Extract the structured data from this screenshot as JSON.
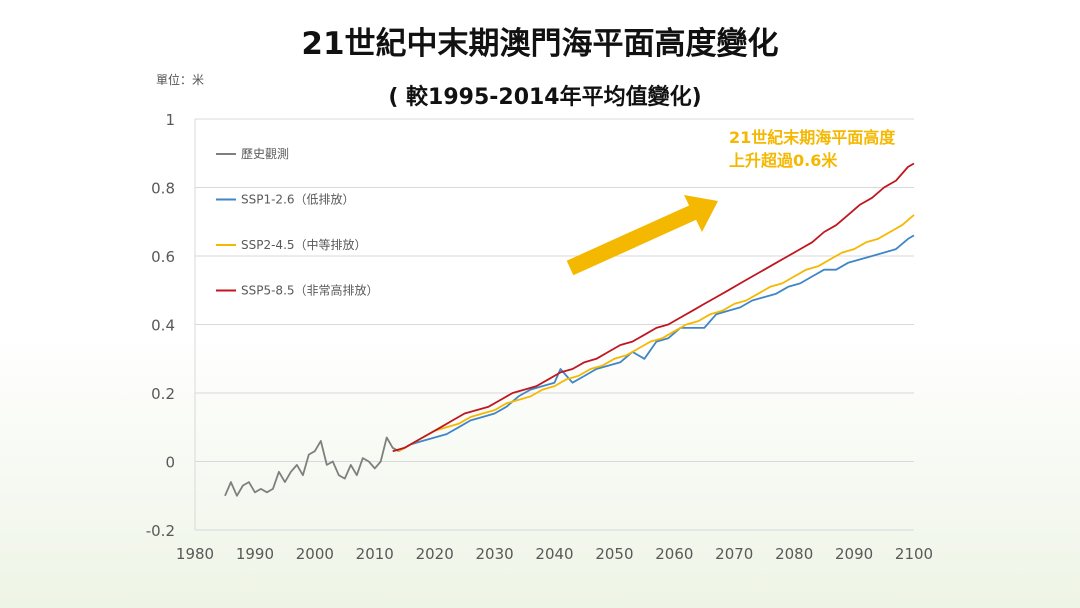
{
  "chart_data": {
    "type": "line",
    "title": "21世紀中末期澳門海平面高度變化",
    "subtitle": "( 較1995-2014年平均值變化)",
    "unit_label": "單位：米",
    "annotation": [
      "21世紀末期海平面高度",
      "上升超過0.6米"
    ],
    "xlim": [
      1980,
      2100
    ],
    "ylim": [
      -0.2,
      1
    ],
    "x_ticks": [
      "1980",
      "1990",
      "2000",
      "2010",
      "2020",
      "2030",
      "2040",
      "2050",
      "2060",
      "2070",
      "2080",
      "2090",
      "2100"
    ],
    "y_ticks": [
      "-0.2",
      "0",
      "0.2",
      "0.4",
      "0.6",
      "0.8",
      "1"
    ],
    "grid": "horizontal",
    "legend_position": "top-left",
    "series": [
      {
        "name": "歷史觀測",
        "color": "#7f7f7f",
        "x": [
          1985,
          1986,
          1987,
          1988,
          1989,
          1990,
          1991,
          1992,
          1993,
          1994,
          1995,
          1996,
          1997,
          1998,
          1999,
          2000,
          2001,
          2002,
          2003,
          2004,
          2005,
          2006,
          2007,
          2008,
          2009,
          2010,
          2011,
          2012,
          2013,
          2014
        ],
        "y": [
          -0.1,
          -0.06,
          -0.1,
          -0.07,
          -0.06,
          -0.09,
          -0.08,
          -0.09,
          -0.08,
          -0.03,
          -0.06,
          -0.03,
          -0.01,
          -0.04,
          0.02,
          0.03,
          0.06,
          -0.01,
          0.0,
          -0.04,
          -0.05,
          -0.01,
          -0.04,
          0.01,
          0.0,
          -0.02,
          0.0,
          0.07,
          0.04,
          0.03
        ]
      },
      {
        "name": "SSP1-2.6（低排放）",
        "color": "#3f86c8",
        "x": [
          2014,
          2016,
          2018,
          2020,
          2022,
          2024,
          2026,
          2028,
          2030,
          2032,
          2034,
          2036,
          2038,
          2040,
          2041,
          2043,
          2045,
          2047,
          2049,
          2051,
          2053,
          2055,
          2057,
          2059,
          2061,
          2063,
          2065,
          2067,
          2069,
          2071,
          2073,
          2075,
          2077,
          2079,
          2081,
          2083,
          2085,
          2087,
          2089,
          2091,
          2093,
          2095,
          2097,
          2099,
          2100
        ],
        "y": [
          0.03,
          0.05,
          0.06,
          0.07,
          0.08,
          0.1,
          0.12,
          0.13,
          0.14,
          0.16,
          0.19,
          0.21,
          0.22,
          0.23,
          0.27,
          0.23,
          0.25,
          0.27,
          0.28,
          0.29,
          0.32,
          0.3,
          0.35,
          0.36,
          0.39,
          0.39,
          0.39,
          0.43,
          0.44,
          0.45,
          0.47,
          0.48,
          0.49,
          0.51,
          0.52,
          0.54,
          0.56,
          0.56,
          0.58,
          0.59,
          0.6,
          0.61,
          0.62,
          0.65,
          0.66
        ]
      },
      {
        "name": "SSP2-4.5（中等排放）",
        "color": "#f5b800",
        "x": [
          2014,
          2016,
          2018,
          2020,
          2022,
          2024,
          2026,
          2028,
          2030,
          2032,
          2034,
          2036,
          2038,
          2040,
          2042,
          2044,
          2046,
          2048,
          2050,
          2052,
          2054,
          2056,
          2058,
          2060,
          2062,
          2064,
          2066,
          2068,
          2070,
          2072,
          2074,
          2076,
          2078,
          2080,
          2082,
          2084,
          2086,
          2088,
          2090,
          2092,
          2094,
          2096,
          2098,
          2100
        ],
        "y": [
          0.03,
          0.05,
          0.07,
          0.09,
          0.1,
          0.11,
          0.13,
          0.14,
          0.15,
          0.17,
          0.18,
          0.19,
          0.21,
          0.22,
          0.24,
          0.25,
          0.27,
          0.28,
          0.3,
          0.31,
          0.33,
          0.35,
          0.36,
          0.38,
          0.4,
          0.41,
          0.43,
          0.44,
          0.46,
          0.47,
          0.49,
          0.51,
          0.52,
          0.54,
          0.56,
          0.57,
          0.59,
          0.61,
          0.62,
          0.64,
          0.65,
          0.67,
          0.69,
          0.72
        ]
      },
      {
        "name": "SSP5-8.5（非常高排放）",
        "color": "#c0161f",
        "x": [
          2013,
          2015,
          2017,
          2019,
          2021,
          2023,
          2025,
          2027,
          2029,
          2031,
          2033,
          2035,
          2037,
          2039,
          2041,
          2043,
          2045,
          2047,
          2049,
          2051,
          2053,
          2055,
          2057,
          2059,
          2061,
          2063,
          2065,
          2067,
          2069,
          2071,
          2073,
          2075,
          2077,
          2079,
          2081,
          2083,
          2085,
          2087,
          2089,
          2091,
          2093,
          2095,
          2097,
          2099,
          2100
        ],
        "y": [
          0.03,
          0.04,
          0.06,
          0.08,
          0.1,
          0.12,
          0.14,
          0.15,
          0.16,
          0.18,
          0.2,
          0.21,
          0.22,
          0.24,
          0.26,
          0.27,
          0.29,
          0.3,
          0.32,
          0.34,
          0.35,
          0.37,
          0.39,
          0.4,
          0.42,
          0.44,
          0.46,
          0.48,
          0.5,
          0.52,
          0.54,
          0.56,
          0.58,
          0.6,
          0.62,
          0.64,
          0.67,
          0.69,
          0.72,
          0.75,
          0.77,
          0.8,
          0.82,
          0.86,
          0.87
        ]
      }
    ]
  }
}
